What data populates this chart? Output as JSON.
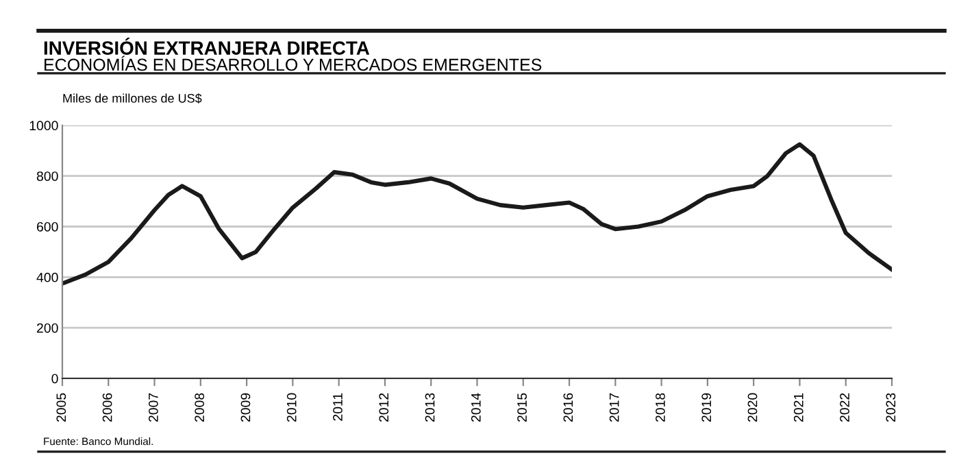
{
  "chart_data": {
    "type": "line",
    "title": "INVERSIÓN EXTRANJERA DIRECTA",
    "subtitle": "ECONOMÍAS EN DESARROLLO Y MERCADOS EMERGENTES",
    "ylabel": "Miles de millones de US$",
    "annotations": [
      "Fuente: Banco Mundial."
    ],
    "x": [
      2005,
      2005.5,
      2006,
      2006.5,
      2007,
      2007.3,
      2007.6,
      2008,
      2008.4,
      2008.9,
      2009.2,
      2009.6,
      2010,
      2010.5,
      2010.9,
      2011.3,
      2011.7,
      2012,
      2012.5,
      2013,
      2013.4,
      2014,
      2014.5,
      2015,
      2015.5,
      2016,
      2016.3,
      2016.7,
      2017,
      2017.5,
      2018,
      2018.5,
      2019,
      2019.5,
      2020,
      2020.3,
      2020.7,
      2021,
      2021.3,
      2021.7,
      2022,
      2022.5,
      2023
    ],
    "series": [
      {
        "color": "#1a1a1a",
        "values": [
          375,
          410,
          460,
          555,
          665,
          725,
          760,
          720,
          590,
          475,
          500,
          590,
          675,
          750,
          815,
          805,
          775,
          765,
          775,
          790,
          770,
          710,
          685,
          675,
          685,
          695,
          670,
          610,
          590,
          600,
          620,
          665,
          720,
          745,
          760,
          800,
          890,
          925,
          880,
          700,
          575,
          495,
          430
        ]
      }
    ],
    "xlim": [
      2005,
      2023
    ],
    "xticks": [
      2005,
      2006,
      2007,
      2008,
      2009,
      2010,
      2011,
      2012,
      2013,
      2014,
      2015,
      2016,
      2017,
      2018,
      2019,
      2020,
      2021,
      2022,
      2023
    ],
    "ylim": [
      0,
      1000
    ],
    "yticks": [
      0,
      200,
      400,
      600,
      800,
      1000
    ],
    "grid": "y",
    "legend": false,
    "marker": "none",
    "line_style": "solid"
  }
}
